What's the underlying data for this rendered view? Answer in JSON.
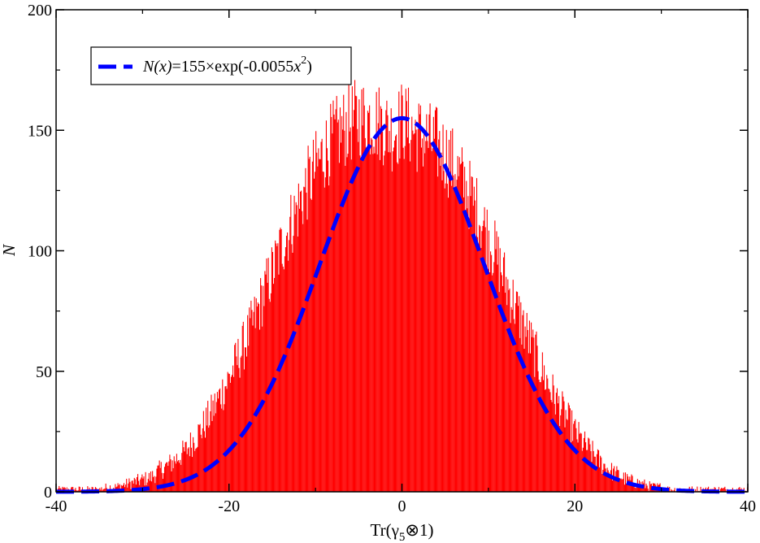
{
  "chart_data": {
    "type": "bar",
    "subtype": "histogram-with-fit",
    "title": "",
    "xlabel": {
      "prefix": "Tr(γ",
      "sub": "5",
      "suffix": "⊗1)"
    },
    "ylabel": "N",
    "xlim": [
      -40,
      40
    ],
    "ylim": [
      0,
      200
    ],
    "xticks": [
      -40,
      -20,
      0,
      20,
      40
    ],
    "yticks": [
      0,
      50,
      100,
      150,
      200
    ],
    "xtick_labels": [
      "-40",
      "-20",
      "0",
      "20",
      "40"
    ],
    "ytick_labels": [
      "0",
      "50",
      "100",
      "150",
      "200"
    ],
    "grid": false,
    "legend_position": "top-left",
    "histogram": {
      "color": "#ff0000",
      "bin_width": 0.1,
      "sample_step": 1,
      "x": [
        -36,
        -35,
        -34,
        -33,
        -32,
        -31,
        -30,
        -29,
        -28,
        -27,
        -26,
        -25,
        -24,
        -23,
        -22,
        -21,
        -20,
        -19,
        -18,
        -17,
        -16,
        -15,
        -14,
        -13,
        -12,
        -11,
        -10,
        -9,
        -8,
        -7,
        -6,
        -5,
        -4,
        -3,
        -2,
        -1,
        0,
        1,
        2,
        3,
        4,
        5,
        6,
        7,
        8,
        9,
        10,
        11,
        12,
        13,
        14,
        15,
        16,
        17,
        18,
        19,
        20,
        21,
        22,
        23,
        24,
        25,
        26,
        27,
        28,
        29,
        30,
        31,
        32,
        33,
        34,
        35,
        36
      ],
      "values": [
        1,
        1,
        2,
        2,
        3,
        4,
        5,
        6,
        9,
        11,
        14,
        17,
        22,
        27,
        33,
        40,
        47,
        55,
        63,
        72,
        82,
        91,
        101,
        110,
        118,
        127,
        134,
        141,
        146,
        150,
        153,
        155,
        155,
        154,
        152,
        149,
        154,
        151,
        148,
        146,
        144,
        140,
        135,
        129,
        122,
        114,
        106,
        97,
        87,
        78,
        69,
        61,
        52,
        44,
        37,
        31,
        25,
        20,
        16,
        12,
        9,
        7,
        5,
        4,
        3,
        2,
        2,
        1,
        1,
        1,
        1,
        1,
        1
      ],
      "peak_max": 173
    },
    "series": [
      {
        "name": "N(x)=155×exp(-0.0055x²)",
        "type": "line",
        "style": "dashed",
        "color": "#0000ff",
        "formula": {
          "amplitude": 155,
          "coefficient": -0.0055,
          "center": 0
        }
      }
    ],
    "legend": [
      {
        "pre": "N(x)",
        "mid": "=155×exp(-0.0055",
        "var": "x",
        "exp": "2",
        "post": ")"
      }
    ]
  }
}
